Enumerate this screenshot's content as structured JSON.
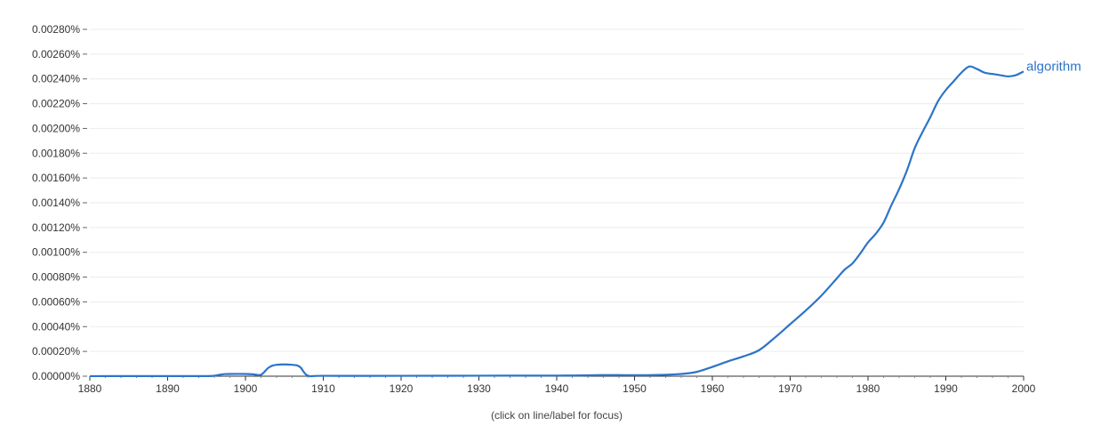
{
  "chart_data": {
    "type": "line",
    "title": "",
    "xlabel": "",
    "ylabel": "",
    "xlim": [
      1880,
      2000
    ],
    "ylim": [
      0,
      0.0028
    ],
    "grid": true,
    "x_ticks": [
      "1880",
      "1890",
      "1900",
      "1910",
      "1920",
      "1930",
      "1940",
      "1950",
      "1960",
      "1970",
      "1980",
      "1990",
      "2000"
    ],
    "y_ticks": [
      "0.00000%",
      "0.00020%",
      "0.00040%",
      "0.00060%",
      "0.00080%",
      "0.00100%",
      "0.00120%",
      "0.00140%",
      "0.00160%",
      "0.00180%",
      "0.00200%",
      "0.00220%",
      "0.00240%",
      "0.00260%",
      "0.00280%"
    ],
    "series": [
      {
        "name": "algorithm",
        "color": "#2c74c9",
        "x": [
          1880,
          1885,
          1890,
          1895,
          1896,
          1897,
          1898,
          1900,
          1901,
          1902,
          1903,
          1904,
          1906,
          1907,
          1908,
          1910,
          1920,
          1930,
          1940,
          1943,
          1946,
          1948,
          1950,
          1953,
          1956,
          1958,
          1960,
          1962,
          1964,
          1966,
          1968,
          1970,
          1972,
          1974,
          1976,
          1977,
          1978,
          1979,
          1980,
          1981,
          1982,
          1983,
          1984,
          1985,
          1986,
          1987,
          1988,
          1989,
          1990,
          1991,
          1992,
          1993,
          1994,
          1995,
          1996,
          1997,
          1998,
          1999,
          2000
        ],
        "y": [
          5e-07,
          1e-06,
          1e-06,
          1e-06,
          4e-06,
          1.5e-05,
          1.8e-05,
          1.8e-05,
          1.5e-05,
          1.2e-05,
          7e-05,
          9.2e-05,
          9.2e-05,
          7.5e-05,
          5e-06,
          3e-06,
          3e-06,
          4e-06,
          5e-06,
          6e-06,
          9e-06,
          9e-06,
          8e-06,
          1e-05,
          1.8e-05,
          3.5e-05,
          7.5e-05,
          0.00012,
          0.00016,
          0.00021,
          0.00031,
          0.00042,
          0.00053,
          0.00065,
          0.00079,
          0.00086,
          0.00091,
          0.00099,
          0.00108,
          0.00115,
          0.00124,
          0.00138,
          0.00151,
          0.00166,
          0.00184,
          0.00197,
          0.00209,
          0.00222,
          0.00231,
          0.00238,
          0.00245,
          0.0025,
          0.00248,
          0.00245,
          0.00244,
          0.00243,
          0.00242,
          0.00243,
          0.00246
        ]
      }
    ]
  },
  "footer": {
    "hint": "(click on line/label for focus)"
  }
}
